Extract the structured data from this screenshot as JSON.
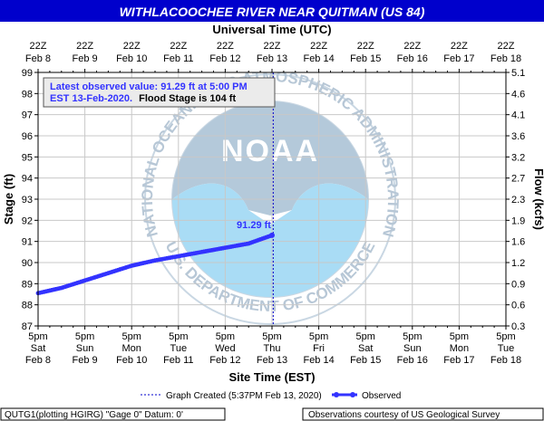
{
  "title": "WITHLACOOCHEE RIVER NEAR QUITMAN (US 84)",
  "top_axis_title": "Universal Time (UTC)",
  "bottom_axis_title": "Site Time (EST)",
  "left_axis_title": "Stage (ft)",
  "right_axis_title": "Flow (kcfs)",
  "annotation": {
    "line1": "Latest observed value: 91.29 ft at 5:00 PM",
    "line2_blue": "EST 13-Feb-2020.",
    "line2_black": "Flood Stage is 104 ft"
  },
  "latest_label": "91.29 ft",
  "legend": {
    "created": "Graph Created (5:37PM Feb 13, 2020)",
    "observed": "Observed"
  },
  "footer": {
    "left": "QUTG1(plotting HGIRG) \"Gage 0\" Datum: 0'",
    "right": "Observations courtesy of US Geological Survey"
  },
  "watermark": {
    "logo_text": "NOAA",
    "ring_text": "NATIONAL OCEANIC AND ATMOSPHERIC ADMINISTRATION",
    "bottom_text": "U.S. DEPARTMENT OF COMMERCE"
  },
  "colors": {
    "title_bg": "#0000cc",
    "title_fg": "#ffffff",
    "series": "#3333ff",
    "annotation": "#3333ff",
    "grid": "#c8c8c8",
    "logo_light": "#a9dcf5",
    "logo_dark": "#b4c9da",
    "box_bg": "#ebebeb"
  },
  "chart_data": {
    "type": "line",
    "title": "WITHLACOOCHEE RIVER NEAR QUITMAN (US 84)",
    "xlabel": "Site Time (EST)",
    "ylabel": "Stage (ft)",
    "y2label": "Flow (kcfs)",
    "ylim": [
      87,
      99
    ],
    "grid": true,
    "x_categories_bottom": [
      [
        "5pm",
        "Sat",
        "Feb 8"
      ],
      [
        "5pm",
        "Sun",
        "Feb 9"
      ],
      [
        "5pm",
        "Mon",
        "Feb 10"
      ],
      [
        "5pm",
        "Tue",
        "Feb 11"
      ],
      [
        "5pm",
        "Wed",
        "Feb 12"
      ],
      [
        "5pm",
        "Thu",
        "Feb 13"
      ],
      [
        "5pm",
        "Fri",
        "Feb 14"
      ],
      [
        "5pm",
        "Sat",
        "Feb 15"
      ],
      [
        "5pm",
        "Sun",
        "Feb 16"
      ],
      [
        "5pm",
        "Mon",
        "Feb 17"
      ],
      [
        "5pm",
        "Tue",
        "Feb 18"
      ]
    ],
    "x_categories_top": [
      [
        "22Z",
        "Feb 8"
      ],
      [
        "22Z",
        "Feb 9"
      ],
      [
        "22Z",
        "Feb 10"
      ],
      [
        "22Z",
        "Feb 11"
      ],
      [
        "22Z",
        "Feb 12"
      ],
      [
        "22Z",
        "Feb 13"
      ],
      [
        "22Z",
        "Feb 14"
      ],
      [
        "22Z",
        "Feb 15"
      ],
      [
        "22Z",
        "Feb 16"
      ],
      [
        "22Z",
        "Feb 17"
      ],
      [
        "22Z",
        "Feb 18"
      ]
    ],
    "y_ticks": [
      87,
      88,
      89,
      90,
      91,
      92,
      93,
      94,
      95,
      96,
      97,
      98,
      99
    ],
    "y2_ticks": [
      "0.3",
      "0.6",
      "0.9",
      "1.2",
      "1.6",
      "1.9",
      "2.3",
      "2.7",
      "3.2",
      "3.6",
      "4.1",
      "4.6",
      "5.1"
    ],
    "graph_created_x": "Feb 13 17:37 EST",
    "series": [
      {
        "name": "Observed",
        "x": [
          "Feb 8 17:00",
          "Feb 9 05:00",
          "Feb 9 17:00",
          "Feb 10 05:00",
          "Feb 10 17:00",
          "Feb 11 05:00",
          "Feb 11 17:00",
          "Feb 12 05:00",
          "Feb 12 17:00",
          "Feb 13 05:00",
          "Feb 13 17:00"
        ],
        "y": [
          88.55,
          88.8,
          89.15,
          89.5,
          89.85,
          90.1,
          90.3,
          90.5,
          90.7,
          90.9,
          91.29
        ]
      }
    ]
  }
}
